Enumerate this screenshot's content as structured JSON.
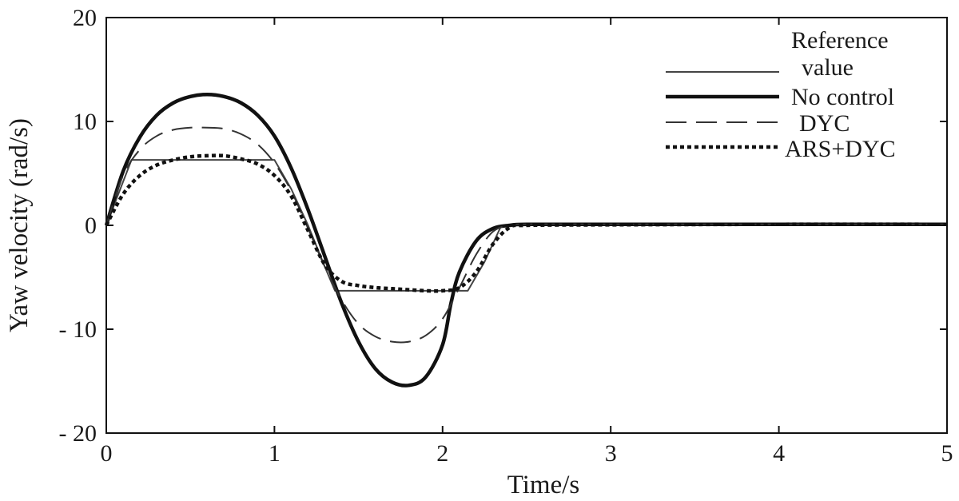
{
  "chart_data": {
    "type": "line",
    "title": "",
    "xlabel": "Time/s",
    "ylabel": "Yaw velocity  (rad/s)",
    "xlim": [
      0,
      5
    ],
    "ylim": [
      -20,
      20
    ],
    "grid": false,
    "legend_position": "top-right",
    "x_ticks": [
      0,
      1,
      2,
      3,
      4,
      5
    ],
    "x_tick_labels": [
      "0",
      "1",
      "2",
      "3",
      "4",
      "5"
    ],
    "y_ticks": [
      20,
      10,
      0,
      -10,
      -20
    ],
    "y_tick_labels": [
      "20",
      "10",
      "0",
      "- 10",
      "- 20"
    ],
    "series": [
      {
        "name": "Reference value",
        "legend_lines": [
          "Reference",
          "value"
        ],
        "style": "thin-solid",
        "color": "#444444",
        "x": [
          0,
          0.15,
          1.0,
          1.1,
          1.2,
          1.3,
          1.36,
          1.5,
          2.0,
          2.15,
          2.25,
          2.35,
          2.45,
          5.0
        ],
        "y": [
          0,
          6.3,
          6.3,
          3.5,
          0,
          -4.0,
          -6.3,
          -6.3,
          -6.3,
          -6.3,
          -3.5,
          0,
          0,
          0
        ]
      },
      {
        "name": "No control",
        "style": "thick-solid",
        "color": "#111111",
        "x": [
          0,
          0.1,
          0.2,
          0.3,
          0.4,
          0.5,
          0.6,
          0.7,
          0.8,
          0.9,
          1.0,
          1.1,
          1.2,
          1.3,
          1.4,
          1.5,
          1.6,
          1.7,
          1.8,
          1.9,
          2.0,
          2.05,
          2.1,
          2.2,
          2.3,
          2.4,
          2.5,
          3.0,
          4.0,
          5.0
        ],
        "y": [
          0,
          5.2,
          8.5,
          10.6,
          11.8,
          12.4,
          12.6,
          12.4,
          11.8,
          10.6,
          8.6,
          5.5,
          1.5,
          -3.0,
          -7.5,
          -11.2,
          -13.8,
          -15.1,
          -15.4,
          -14.6,
          -11.5,
          -7.5,
          -4.5,
          -1.5,
          -0.3,
          0,
          0.1,
          0.1,
          0.1,
          0.1
        ]
      },
      {
        "name": "DYC",
        "style": "long-dash",
        "color": "#333333",
        "x": [
          0,
          0.1,
          0.2,
          0.3,
          0.4,
          0.5,
          0.6,
          0.7,
          0.8,
          0.9,
          1.0,
          1.1,
          1.2,
          1.3,
          1.4,
          1.5,
          1.6,
          1.7,
          1.8,
          1.9,
          2.0,
          2.1,
          2.2,
          2.3,
          2.4,
          2.5,
          3.0,
          4.0,
          5.0
        ],
        "y": [
          0,
          4.8,
          7.3,
          8.6,
          9.2,
          9.4,
          9.4,
          9.3,
          8.8,
          7.8,
          6.0,
          3.3,
          -0.3,
          -4.0,
          -7.2,
          -9.5,
          -10.7,
          -11.2,
          -11.2,
          -10.6,
          -9.0,
          -6.0,
          -2.8,
          -0.6,
          0,
          0.1,
          0.1,
          0.1,
          0.1
        ]
      },
      {
        "name": "ARS+DYC",
        "style": "dotted",
        "color": "#111111",
        "x": [
          0,
          0.1,
          0.2,
          0.3,
          0.4,
          0.5,
          0.6,
          0.7,
          0.8,
          0.9,
          1.0,
          1.1,
          1.2,
          1.3,
          1.4,
          1.5,
          1.6,
          1.7,
          1.8,
          1.9,
          2.0,
          2.1,
          2.2,
          2.3,
          2.4,
          2.5,
          3.0,
          4.0,
          5.0
        ],
        "y": [
          0,
          3.0,
          4.8,
          5.8,
          6.3,
          6.6,
          6.7,
          6.7,
          6.4,
          5.9,
          4.8,
          2.8,
          -0.5,
          -3.8,
          -5.4,
          -5.8,
          -6.0,
          -6.1,
          -6.2,
          -6.3,
          -6.3,
          -6.0,
          -4.5,
          -1.8,
          -0.2,
          0,
          0.05,
          0.1,
          0.1
        ]
      }
    ]
  }
}
